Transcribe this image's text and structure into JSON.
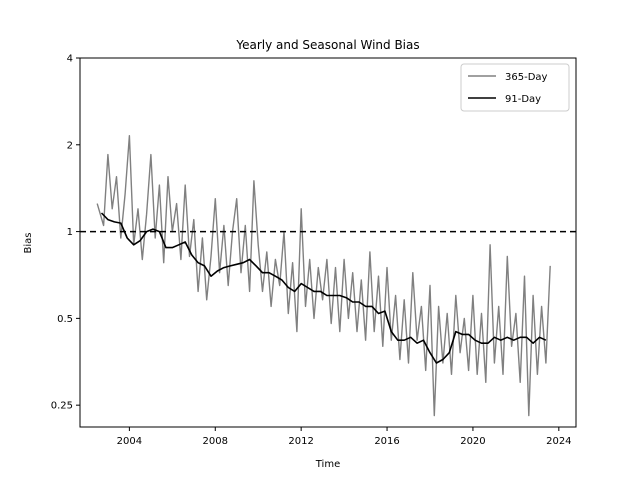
{
  "chart_data": {
    "type": "line",
    "title": "Yearly and Seasonal Wind Bias",
    "xlabel": "Time",
    "ylabel": "Bias",
    "xlim": [
      2001.7,
      2024.8
    ],
    "ylim": [
      0.21,
      4
    ],
    "yscale": "log2",
    "xticks": [
      2004,
      2008,
      2012,
      2016,
      2020,
      2024
    ],
    "xtick_labels": [
      "2004",
      "2008",
      "2012",
      "2016",
      "2020",
      "2024"
    ],
    "yticks": [
      0.25,
      0.5,
      1,
      2,
      4
    ],
    "ytick_labels": [
      "0.25",
      "0.5",
      "1",
      "2",
      "4"
    ],
    "grid": false,
    "legend": {
      "position": "top-right"
    },
    "reference_line": {
      "y": 1,
      "style": "dashed",
      "color": "#000000"
    },
    "series": [
      {
        "name": "365-Day",
        "color": "#808080",
        "x": [
          2002.5,
          2002.8,
          2003.0,
          2003.2,
          2003.4,
          2003.6,
          2003.8,
          2004.0,
          2004.2,
          2004.4,
          2004.6,
          2004.8,
          2005.0,
          2005.2,
          2005.4,
          2005.6,
          2005.8,
          2006.0,
          2006.2,
          2006.4,
          2006.6,
          2006.8,
          2007.0,
          2007.2,
          2007.4,
          2007.6,
          2007.8,
          2008.0,
          2008.2,
          2008.4,
          2008.6,
          2008.8,
          2009.0,
          2009.2,
          2009.4,
          2009.6,
          2009.8,
          2010.0,
          2010.2,
          2010.4,
          2010.6,
          2010.8,
          2011.0,
          2011.2,
          2011.4,
          2011.6,
          2011.8,
          2012.0,
          2012.2,
          2012.4,
          2012.6,
          2012.8,
          2013.0,
          2013.2,
          2013.4,
          2013.6,
          2013.8,
          2014.0,
          2014.2,
          2014.4,
          2014.6,
          2014.8,
          2015.0,
          2015.2,
          2015.4,
          2015.6,
          2015.8,
          2016.0,
          2016.2,
          2016.4,
          2016.6,
          2016.8,
          2017.0,
          2017.2,
          2017.4,
          2017.6,
          2017.8,
          2018.0,
          2018.2,
          2018.4,
          2018.6,
          2018.8,
          2019.0,
          2019.2,
          2019.4,
          2019.6,
          2019.8,
          2020.0,
          2020.2,
          2020.4,
          2020.6,
          2020.8,
          2021.0,
          2021.2,
          2021.4,
          2021.6,
          2021.8,
          2022.0,
          2022.2,
          2022.4,
          2022.6,
          2022.8,
          2023.0,
          2023.2,
          2023.4,
          2023.6
        ],
        "values": [
          1.25,
          1.05,
          1.85,
          1.2,
          1.55,
          0.95,
          1.35,
          2.15,
          0.9,
          1.2,
          0.8,
          1.15,
          1.85,
          0.95,
          1.45,
          0.78,
          1.55,
          1.0,
          1.25,
          0.8,
          1.45,
          0.82,
          1.1,
          0.62,
          0.95,
          0.58,
          0.82,
          1.3,
          0.72,
          1.05,
          0.65,
          1.0,
          1.3,
          0.72,
          1.05,
          0.62,
          1.5,
          0.9,
          0.62,
          0.85,
          0.55,
          0.8,
          0.65,
          1.0,
          0.52,
          0.78,
          0.45,
          1.2,
          0.55,
          0.8,
          0.5,
          0.75,
          0.58,
          0.8,
          0.48,
          0.75,
          0.45,
          0.8,
          0.5,
          0.72,
          0.45,
          0.68,
          0.42,
          0.85,
          0.45,
          0.7,
          0.4,
          0.75,
          0.42,
          0.6,
          0.36,
          0.58,
          0.35,
          0.72,
          0.42,
          0.55,
          0.33,
          0.65,
          0.23,
          0.55,
          0.35,
          0.52,
          0.32,
          0.6,
          0.38,
          0.5,
          0.33,
          0.6,
          0.32,
          0.52,
          0.3,
          0.9,
          0.35,
          0.55,
          0.32,
          0.82,
          0.4,
          0.52,
          0.3,
          0.7,
          0.23,
          0.6,
          0.32,
          0.55,
          0.35,
          0.76
        ]
      },
      {
        "name": "91-Day",
        "color": "#000000",
        "x": [
          2002.7,
          2003.0,
          2003.3,
          2003.6,
          2003.9,
          2004.2,
          2004.5,
          2004.8,
          2005.1,
          2005.4,
          2005.7,
          2006.0,
          2006.3,
          2006.6,
          2006.9,
          2007.2,
          2007.5,
          2007.8,
          2008.1,
          2008.4,
          2008.7,
          2009.0,
          2009.3,
          2009.6,
          2009.9,
          2010.2,
          2010.5,
          2010.8,
          2011.1,
          2011.4,
          2011.7,
          2012.0,
          2012.3,
          2012.6,
          2012.9,
          2013.2,
          2013.5,
          2013.8,
          2014.1,
          2014.4,
          2014.7,
          2015.0,
          2015.3,
          2015.6,
          2015.9,
          2016.2,
          2016.5,
          2016.8,
          2017.1,
          2017.4,
          2017.7,
          2018.0,
          2018.3,
          2018.6,
          2018.9,
          2019.2,
          2019.5,
          2019.8,
          2020.1,
          2020.4,
          2020.7,
          2021.0,
          2021.3,
          2021.6,
          2021.9,
          2022.2,
          2022.5,
          2022.8,
          2023.1,
          2023.4
        ],
        "values": [
          1.16,
          1.1,
          1.08,
          1.07,
          0.95,
          0.9,
          0.93,
          1.0,
          1.02,
          1.0,
          0.88,
          0.88,
          0.9,
          0.92,
          0.83,
          0.78,
          0.76,
          0.7,
          0.73,
          0.75,
          0.76,
          0.77,
          0.78,
          0.8,
          0.76,
          0.72,
          0.72,
          0.7,
          0.68,
          0.64,
          0.62,
          0.66,
          0.64,
          0.62,
          0.62,
          0.6,
          0.6,
          0.6,
          0.59,
          0.57,
          0.57,
          0.55,
          0.55,
          0.52,
          0.53,
          0.45,
          0.42,
          0.42,
          0.43,
          0.41,
          0.42,
          0.38,
          0.35,
          0.36,
          0.38,
          0.45,
          0.44,
          0.44,
          0.42,
          0.41,
          0.41,
          0.43,
          0.42,
          0.43,
          0.42,
          0.43,
          0.43,
          0.41,
          0.43,
          0.42
        ]
      }
    ]
  }
}
